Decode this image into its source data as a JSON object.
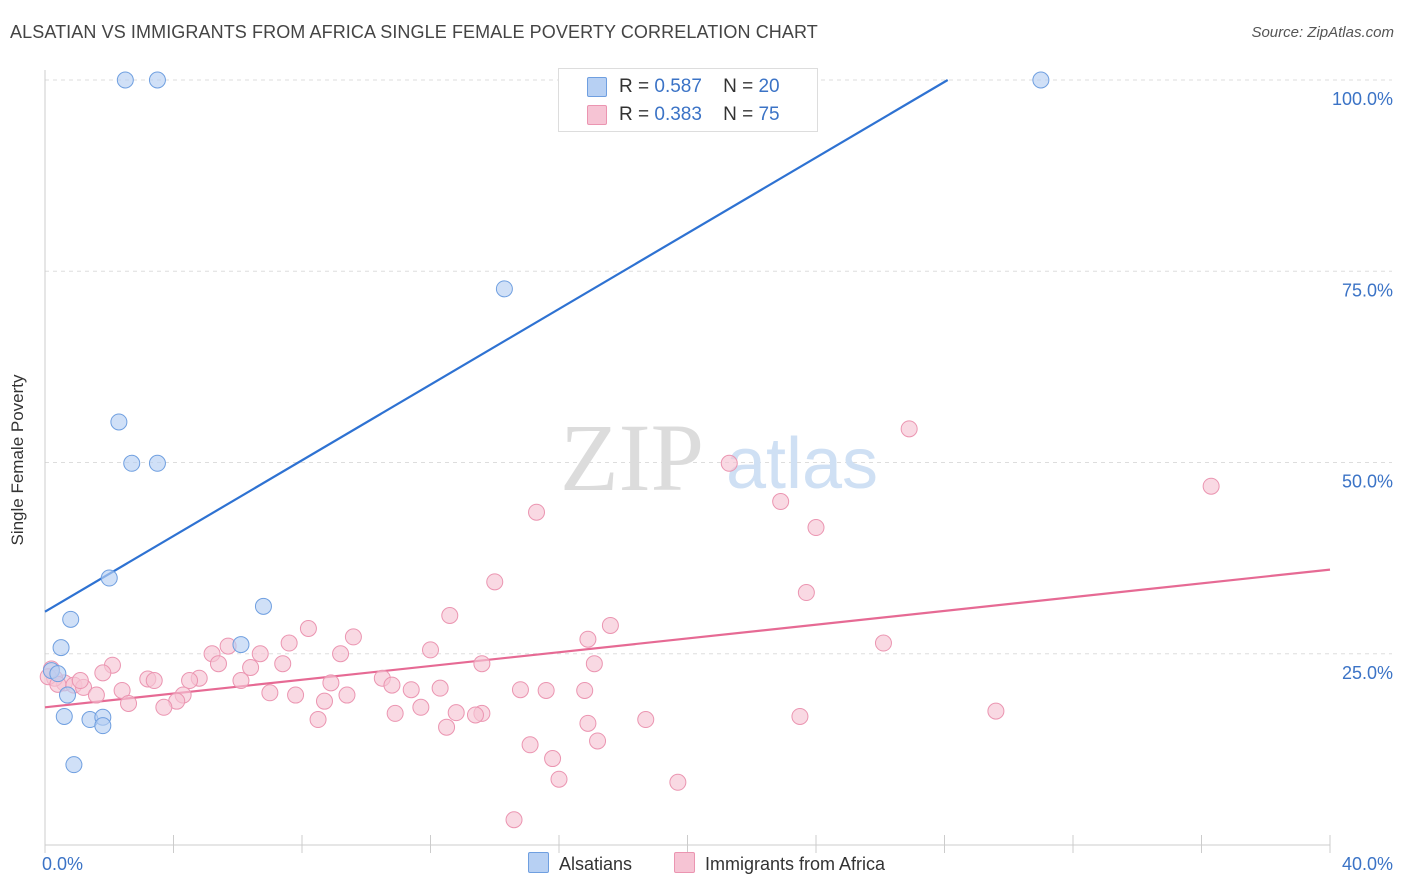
{
  "title": "ALSATIAN VS IMMIGRANTS FROM AFRICA SINGLE FEMALE POVERTY CORRELATION CHART",
  "source": "Source: ZipAtlas.com",
  "watermark": {
    "zip": "ZIP",
    "atlas": "atlas"
  },
  "colors": {
    "blue_fill": "#b7d0f3",
    "blue_stroke": "#6f9fe0",
    "blue_line": "#2e72d2",
    "pink_fill": "#f6c4d4",
    "pink_stroke": "#eb95b1",
    "pink_line": "#e66a94",
    "value_text": "#3b73c6",
    "grid": "#dddddd"
  },
  "legend_top": [
    {
      "r_label": "R =",
      "r_value": "0.587",
      "n_label": "N =",
      "n_value": "20",
      "color": "blue"
    },
    {
      "r_label": "R =",
      "r_value": "0.383",
      "n_label": "N =",
      "n_value": "75",
      "color": "pink"
    }
  ],
  "chart_data": {
    "type": "scatter",
    "title": "ALSATIAN VS IMMIGRANTS FROM AFRICA SINGLE FEMALE POVERTY CORRELATION CHART",
    "xlabel": "",
    "ylabel": "Single Female Poverty",
    "xlim": [
      0,
      40
    ],
    "ylim": [
      0,
      105
    ],
    "x_tick_labels": [
      {
        "value": 0,
        "label": "0.0%"
      },
      {
        "value": 40,
        "label": "40.0%"
      }
    ],
    "y_tick_labels": [
      {
        "value": 25,
        "label": "25.0%"
      },
      {
        "value": 50,
        "label": "50.0%"
      },
      {
        "value": 75,
        "label": "75.0%"
      },
      {
        "value": 100,
        "label": "100.0%"
      }
    ],
    "grid": true,
    "legend_position": "bottom",
    "series": [
      {
        "name": "Alsatians",
        "color": "blue",
        "trend": {
          "x": [
            0,
            28.1
          ],
          "y": [
            30.5,
            100
          ]
        },
        "points": [
          [
            2.5,
            100
          ],
          [
            3.5,
            100
          ],
          [
            31.0,
            100
          ],
          [
            14.3,
            72.7
          ],
          [
            2.3,
            55.3
          ],
          [
            2.7,
            49.9
          ],
          [
            3.5,
            49.9
          ],
          [
            2.0,
            34.9
          ],
          [
            0.8,
            29.5
          ],
          [
            6.8,
            31.2
          ],
          [
            6.1,
            26.2
          ],
          [
            0.5,
            25.8
          ],
          [
            0.2,
            22.8
          ],
          [
            0.4,
            22.4
          ],
          [
            0.7,
            19.6
          ],
          [
            0.6,
            16.8
          ],
          [
            1.4,
            16.4
          ],
          [
            1.8,
            16.7
          ],
          [
            1.8,
            15.6
          ],
          [
            0.9,
            10.5
          ]
        ]
      },
      {
        "name": "Immigrants from Africa",
        "color": "pink",
        "trend": {
          "x": [
            0,
            40
          ],
          "y": [
            18.0,
            36.0
          ]
        },
        "points": [
          [
            26.9,
            54.4
          ],
          [
            36.3,
            46.9
          ],
          [
            21.3,
            49.9
          ],
          [
            22.9,
            44.9
          ],
          [
            15.3,
            43.5
          ],
          [
            24.0,
            41.5
          ],
          [
            23.7,
            33.0
          ],
          [
            14.0,
            34.4
          ],
          [
            12.6,
            30.0
          ],
          [
            17.6,
            28.7
          ],
          [
            8.2,
            28.3
          ],
          [
            16.9,
            26.9
          ],
          [
            7.6,
            26.4
          ],
          [
            9.6,
            27.2
          ],
          [
            5.7,
            26.0
          ],
          [
            12.0,
            25.5
          ],
          [
            26.1,
            26.4
          ],
          [
            5.2,
            25.0
          ],
          [
            6.7,
            25.0
          ],
          [
            9.2,
            25.0
          ],
          [
            17.1,
            23.7
          ],
          [
            13.6,
            23.7
          ],
          [
            7.4,
            23.7
          ],
          [
            2.1,
            23.5
          ],
          [
            6.4,
            23.2
          ],
          [
            5.4,
            23.7
          ],
          [
            1.8,
            22.5
          ],
          [
            3.2,
            21.7
          ],
          [
            3.4,
            21.5
          ],
          [
            4.8,
            21.8
          ],
          [
            6.1,
            21.5
          ],
          [
            4.5,
            21.5
          ],
          [
            8.9,
            21.2
          ],
          [
            10.5,
            21.8
          ],
          [
            10.8,
            20.9
          ],
          [
            11.4,
            20.3
          ],
          [
            12.3,
            20.5
          ],
          [
            14.8,
            20.3
          ],
          [
            15.6,
            20.2
          ],
          [
            16.8,
            20.2
          ],
          [
            0.6,
            21.2
          ],
          [
            0.9,
            20.9
          ],
          [
            1.2,
            20.6
          ],
          [
            0.3,
            21.8
          ],
          [
            2.4,
            20.2
          ],
          [
            7.0,
            19.9
          ],
          [
            7.8,
            19.6
          ],
          [
            9.4,
            19.6
          ],
          [
            4.3,
            19.6
          ],
          [
            1.6,
            19.6
          ],
          [
            4.1,
            18.8
          ],
          [
            8.7,
            18.8
          ],
          [
            2.6,
            18.5
          ],
          [
            3.7,
            18.0
          ],
          [
            11.7,
            18.0
          ],
          [
            10.9,
            17.2
          ],
          [
            12.8,
            17.3
          ],
          [
            13.6,
            17.2
          ],
          [
            13.4,
            17.0
          ],
          [
            8.5,
            16.4
          ],
          [
            18.7,
            16.4
          ],
          [
            16.9,
            15.9
          ],
          [
            12.5,
            15.4
          ],
          [
            17.2,
            13.6
          ],
          [
            15.1,
            13.1
          ],
          [
            15.8,
            11.3
          ],
          [
            16.0,
            8.6
          ],
          [
            19.7,
            8.2
          ],
          [
            14.6,
            3.3
          ],
          [
            29.6,
            17.5
          ],
          [
            23.5,
            16.8
          ],
          [
            0.2,
            23.0
          ],
          [
            0.1,
            22.0
          ],
          [
            0.4,
            21.0
          ],
          [
            1.1,
            21.5
          ]
        ]
      }
    ]
  },
  "legend_bottom": [
    {
      "label": "Alsatians",
      "color": "blue"
    },
    {
      "label": "Immigrants from Africa",
      "color": "pink"
    }
  ]
}
